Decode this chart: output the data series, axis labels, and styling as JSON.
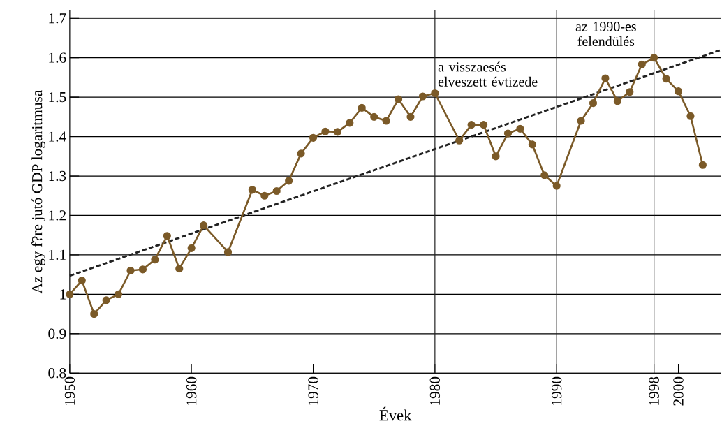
{
  "chart_data": {
    "type": "line",
    "xlabel": "Évek",
    "ylabel": "Az egy f?re jutó GDP logaritmusa",
    "xlim": [
      1950,
      2003.5
    ],
    "ylim": [
      0.8,
      1.72
    ],
    "xticks": [
      1950,
      1960,
      1970,
      1980,
      1990,
      1998,
      2000
    ],
    "yticks": [
      0.8,
      0.9,
      1,
      1.1,
      1.2,
      1.3,
      1.4,
      1.5,
      1.6,
      1.7
    ],
    "grid": "y",
    "marker": "circle",
    "line_style": "solid",
    "series": [
      {
        "color": "#7b5a28",
        "x": [
          1950,
          1951,
          1952,
          1953,
          1954,
          1955,
          1956,
          1957,
          1958,
          1959,
          1960,
          1961,
          1963,
          1965,
          1966,
          1967,
          1968,
          1969,
          1970,
          1971,
          1972,
          1973,
          1974,
          1975,
          1976,
          1977,
          1978,
          1979,
          1980,
          1982,
          1983,
          1984,
          1985,
          1986,
          1987,
          1988,
          1989,
          1990,
          1992,
          1993,
          1994,
          1995,
          1996,
          1997,
          1998,
          1999,
          2000,
          2001,
          2002
        ],
        "values": [
          1.0,
          1.035,
          0.95,
          0.985,
          1.0,
          1.06,
          1.063,
          1.088,
          1.148,
          1.065,
          1.117,
          1.175,
          1.107,
          1.265,
          1.25,
          1.262,
          1.288,
          1.357,
          1.397,
          1.413,
          1.412,
          1.435,
          1.473,
          1.45,
          1.44,
          1.495,
          1.45,
          1.502,
          1.51,
          1.39,
          1.43,
          1.43,
          1.35,
          1.408,
          1.42,
          1.38,
          1.302,
          1.275,
          1.44,
          1.485,
          1.548,
          1.49,
          1.513,
          1.583,
          1.6,
          1.547,
          1.515,
          1.452,
          1.328
        ]
      },
      {
        "type": "line",
        "color": "#222222",
        "line_style": "dashed",
        "marker": "none",
        "x": [
          1950,
          2003.5
        ],
        "values": [
          1.047,
          1.62
        ]
      }
    ],
    "ref_lines": [
      {
        "axis": "x",
        "value": 1980,
        "label": "a visszaesés elveszett évtizede",
        "color": "#222222"
      },
      {
        "axis": "x",
        "value": 1990,
        "color": "#222222"
      },
      {
        "axis": "x",
        "value": 1998,
        "label": "az 1990-es felendülés",
        "color": "#222222"
      }
    ]
  }
}
